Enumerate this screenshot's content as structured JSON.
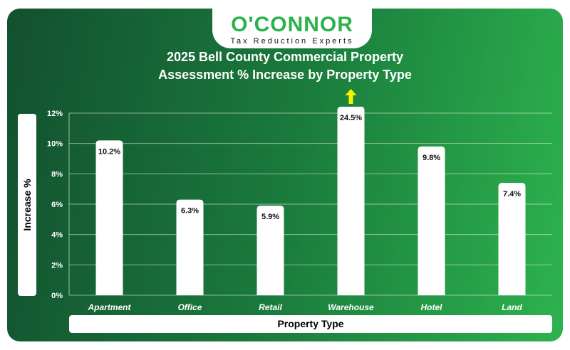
{
  "logo": {
    "brand": "O'CONNOR",
    "tagline": "Tax Reduction Experts"
  },
  "chart_data": {
    "type": "bar",
    "title": "2025 Bell County Commercial Property Assessment % Increase by Property Type",
    "title_lines": [
      "2025 Bell County Commercial Property",
      "Assessment % Increase by Property Type"
    ],
    "xlabel": "Property Type",
    "ylabel": "Increase %",
    "categories": [
      "Apartment",
      "Office",
      "Retail",
      "Warehouse",
      "Hotel",
      "Land"
    ],
    "values": [
      10.2,
      6.3,
      5.9,
      24.5,
      9.8,
      7.4
    ],
    "data_labels": [
      "10.2%",
      "6.3%",
      "5.9%",
      "24.5%",
      "9.8%",
      "7.4%"
    ],
    "ylim": [
      0,
      12
    ],
    "yticks": [
      "0%",
      "2%",
      "4%",
      "6%",
      "8%",
      "10%",
      "12%"
    ],
    "grid": true,
    "bar_color": "#ffffff",
    "arrow_color": "#f5f500",
    "note": "Warehouse bar exceeds axis, shown with arrow"
  }
}
